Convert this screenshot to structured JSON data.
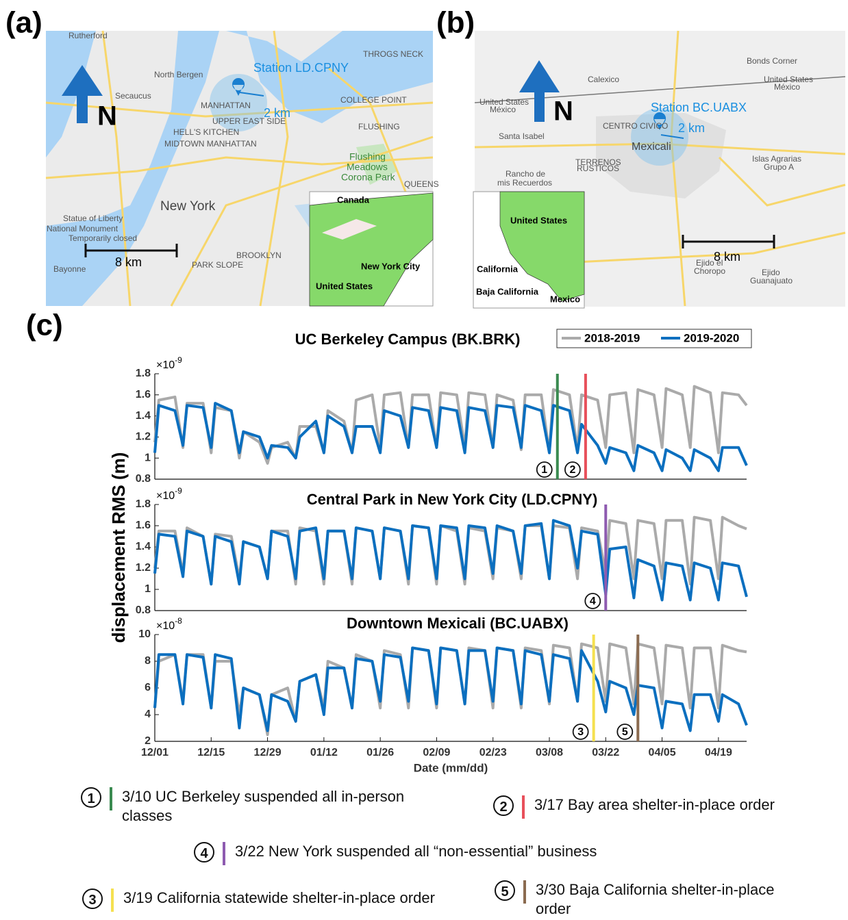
{
  "map_a": {
    "label": "(a)",
    "station": "Station LD.CPNY",
    "radius": "2 km",
    "north": "N",
    "scale": "8 km",
    "places": [
      "Rutherford",
      "North Bergen",
      "Secaucus",
      "MANHATTAN",
      "UPPER EAST SIDE",
      "HELL'S KITCHEN",
      "MIDTOWN MANHATTAN",
      "COLLEGE POINT",
      "FLUSHING",
      "Flushing",
      "Meadows",
      "Corona Park",
      "QUEENS",
      "New York",
      "Statue of Liberty",
      "National Monument",
      "Temporarily closed",
      "BROOKLYN",
      "PARK SLOPE",
      "Bayonne",
      "THROGS NECK"
    ],
    "inset": [
      "Canada",
      "New York City",
      "United States"
    ]
  },
  "map_b": {
    "label": "(b)",
    "station": "Station BC.UABX",
    "radius": "2 km",
    "north": "N",
    "scale": "8 km",
    "places": [
      "Calexico",
      "Bonds Corner",
      "United States",
      "México",
      "United States",
      "México",
      "Santa Isabel",
      "CENTRO CIVICO",
      "Mexicali",
      "Rancho de",
      "mis Recuerdos",
      "TERRENOS",
      "RUSTICOS",
      "Islas Agrarias",
      "Grupo A",
      "Ejido el",
      "Choropo",
      "Ejido",
      "Guanajuato"
    ],
    "inset": [
      "United States",
      "California",
      "Baja California",
      "Mexico"
    ]
  },
  "panel_c_label": "(c)",
  "chart_data": [
    {
      "type": "line",
      "title": "UC Berkeley Campus (BK.BRK)",
      "y_multiplier": "×10",
      "y_exponent": "-9",
      "xlim": [
        0,
        147
      ],
      "ylim": [
        0.8,
        1.8
      ],
      "yticks": [
        0.8,
        1,
        1.2,
        1.4,
        1.6,
        1.8
      ],
      "x": [
        0,
        1,
        5,
        7,
        8,
        12,
        14,
        15,
        19,
        21,
        22,
        26,
        28,
        29,
        33,
        35,
        36,
        40,
        42,
        43,
        47,
        49,
        50,
        54,
        56,
        57,
        61,
        63,
        64,
        68,
        70,
        71,
        75,
        77,
        78,
        82,
        84,
        85,
        89,
        91,
        92,
        96,
        98,
        99,
        103,
        105,
        106,
        110,
        112,
        113,
        117,
        119,
        120,
        124,
        126,
        127,
        131,
        133,
        134,
        138,
        140,
        141,
        145,
        147
      ],
      "series": [
        {
          "name": "2018-2019",
          "color": "#aaaaaa",
          "values": [
            1.15,
            1.55,
            1.58,
            1.1,
            1.52,
            1.52,
            1.05,
            1.48,
            1.45,
            1.0,
            1.25,
            1.15,
            0.95,
            1.1,
            1.15,
            1.0,
            1.3,
            1.3,
            1.05,
            1.45,
            1.35,
            1.05,
            1.55,
            1.6,
            1.1,
            1.6,
            1.62,
            1.1,
            1.6,
            1.6,
            1.1,
            1.62,
            1.6,
            1.1,
            1.62,
            1.6,
            1.1,
            1.6,
            1.55,
            1.08,
            1.6,
            1.6,
            1.05,
            1.65,
            1.6,
            1.08,
            1.6,
            1.55,
            1.1,
            1.6,
            1.62,
            1.05,
            1.65,
            1.6,
            1.1,
            1.66,
            1.6,
            1.1,
            1.68,
            1.62,
            1.05,
            1.62,
            1.6,
            1.5
          ]
        },
        {
          "name": "2019-2020",
          "color": "#0b6fbf",
          "values": [
            1.05,
            1.5,
            1.45,
            1.12,
            1.5,
            1.48,
            1.1,
            1.52,
            1.45,
            1.05,
            1.25,
            1.2,
            1.0,
            1.12,
            1.1,
            1.0,
            1.2,
            1.35,
            1.05,
            1.4,
            1.3,
            1.05,
            1.3,
            1.3,
            1.05,
            1.45,
            1.4,
            1.1,
            1.48,
            1.45,
            1.1,
            1.48,
            1.45,
            1.05,
            1.48,
            1.45,
            1.1,
            1.5,
            1.48,
            1.1,
            1.5,
            1.45,
            1.05,
            1.5,
            1.45,
            1.05,
            1.32,
            1.12,
            0.95,
            1.1,
            1.05,
            0.88,
            1.12,
            1.05,
            0.88,
            1.08,
            1.0,
            0.88,
            1.08,
            1.0,
            0.88,
            1.1,
            1.1,
            0.93
          ]
        }
      ],
      "events": [
        {
          "x": 100,
          "label": "1",
          "color": "#3a8a50"
        },
        {
          "x": 107,
          "label": "2",
          "color": "#e8505b"
        }
      ]
    },
    {
      "type": "line",
      "title": "Central Park in New York City (LD.CPNY)",
      "y_multiplier": "×10",
      "y_exponent": "-9",
      "ylabel": "displacement RMS (m)",
      "xlim": [
        0,
        147
      ],
      "ylim": [
        0.8,
        1.8
      ],
      "yticks": [
        0.8,
        1,
        1.2,
        1.4,
        1.6,
        1.8
      ],
      "x": [
        0,
        1,
        5,
        7,
        8,
        12,
        14,
        15,
        19,
        21,
        22,
        26,
        28,
        29,
        33,
        35,
        36,
        40,
        42,
        43,
        47,
        49,
        50,
        54,
        56,
        57,
        61,
        63,
        64,
        68,
        70,
        71,
        75,
        77,
        78,
        82,
        84,
        85,
        89,
        91,
        92,
        96,
        98,
        99,
        103,
        105,
        106,
        110,
        112,
        113,
        117,
        119,
        120,
        124,
        126,
        127,
        131,
        133,
        134,
        138,
        140,
        141,
        145,
        147
      ],
      "series": [
        {
          "color": "#aaaaaa",
          "values": [
            1.2,
            1.55,
            1.55,
            1.15,
            1.58,
            1.5,
            1.05,
            1.52,
            1.5,
            1.1,
            1.45,
            1.4,
            1.1,
            1.55,
            1.55,
            1.05,
            1.58,
            1.55,
            1.05,
            1.55,
            1.55,
            1.05,
            1.58,
            1.55,
            1.1,
            1.58,
            1.55,
            1.05,
            1.6,
            1.58,
            1.05,
            1.6,
            1.55,
            1.05,
            1.58,
            1.55,
            1.1,
            1.58,
            1.55,
            1.1,
            1.6,
            1.6,
            1.1,
            1.6,
            1.58,
            1.1,
            1.58,
            1.55,
            1.15,
            1.65,
            1.62,
            1.1,
            1.65,
            1.62,
            1.1,
            1.65,
            1.65,
            1.05,
            1.68,
            1.65,
            1.1,
            1.68,
            1.6,
            1.57
          ]
        },
        {
          "color": "#0b6fbf",
          "values": [
            1.15,
            1.52,
            1.5,
            1.12,
            1.55,
            1.5,
            1.05,
            1.5,
            1.45,
            1.05,
            1.45,
            1.4,
            1.1,
            1.55,
            1.5,
            1.1,
            1.55,
            1.58,
            1.1,
            1.55,
            1.55,
            1.1,
            1.58,
            1.55,
            1.1,
            1.58,
            1.55,
            1.1,
            1.6,
            1.58,
            1.1,
            1.6,
            1.58,
            1.1,
            1.6,
            1.58,
            1.15,
            1.6,
            1.55,
            1.15,
            1.6,
            1.62,
            1.1,
            1.65,
            1.6,
            1.2,
            1.55,
            1.52,
            0.95,
            1.38,
            1.4,
            0.92,
            1.28,
            1.22,
            0.9,
            1.25,
            1.22,
            0.9,
            1.25,
            1.2,
            0.9,
            1.25,
            1.22,
            0.93
          ]
        }
      ],
      "events": [
        {
          "x": 112,
          "label": "4",
          "color": "#8e5bb0"
        }
      ]
    },
    {
      "type": "line",
      "title": "Downtown Mexicali (BC.UABX)",
      "y_multiplier": "×10",
      "y_exponent": "-8",
      "xlabel": "Date (mm/dd)",
      "xlim": [
        0,
        147
      ],
      "ylim": [
        2,
        10
      ],
      "yticks": [
        2,
        4,
        6,
        8,
        10
      ],
      "xticks": [
        {
          "value": 0,
          "label": "12/01"
        },
        {
          "value": 14,
          "label": "12/15"
        },
        {
          "value": 28,
          "label": "12/29"
        },
        {
          "value": 42,
          "label": "01/12"
        },
        {
          "value": 56,
          "label": "01/26"
        },
        {
          "value": 70,
          "label": "02/09"
        },
        {
          "value": 84,
          "label": "02/23"
        },
        {
          "value": 98,
          "label": "03/08"
        },
        {
          "value": 112,
          "label": "03/22"
        },
        {
          "value": 126,
          "label": "04/05"
        },
        {
          "value": 140,
          "label": "04/19"
        }
      ],
      "x": [
        0,
        1,
        5,
        7,
        8,
        12,
        14,
        15,
        19,
        21,
        22,
        26,
        28,
        29,
        33,
        35,
        36,
        40,
        42,
        43,
        47,
        49,
        50,
        54,
        56,
        57,
        61,
        63,
        64,
        68,
        70,
        71,
        75,
        77,
        78,
        82,
        84,
        85,
        89,
        91,
        92,
        96,
        98,
        99,
        103,
        105,
        106,
        110,
        112,
        113,
        117,
        119,
        120,
        124,
        126,
        127,
        131,
        133,
        134,
        138,
        140,
        141,
        145,
        147
      ],
      "series": [
        {
          "color": "#aaaaaa",
          "values": [
            4.5,
            8.0,
            8.5,
            5.0,
            8.5,
            8.5,
            4.5,
            8.0,
            8.0,
            4.0,
            6.0,
            5.5,
            2.5,
            5.5,
            6.0,
            3.5,
            6.5,
            7.0,
            4.5,
            8.0,
            7.5,
            4.5,
            8.5,
            8.0,
            4.5,
            8.8,
            8.5,
            4.5,
            9.0,
            8.8,
            4.5,
            9.0,
            8.8,
            4.8,
            9.0,
            8.8,
            4.5,
            9.0,
            8.8,
            4.5,
            9.0,
            8.8,
            4.8,
            9.2,
            9.0,
            5.0,
            9.3,
            9.0,
            5.0,
            9.3,
            9.0,
            4.8,
            9.3,
            9.0,
            4.8,
            9.2,
            9.0,
            4.5,
            9.0,
            9.0,
            4.5,
            9.2,
            8.8,
            8.7
          ]
        },
        {
          "color": "#0b6fbf",
          "values": [
            4.5,
            8.5,
            8.5,
            4.8,
            8.5,
            8.3,
            4.5,
            8.5,
            8.2,
            3.0,
            6.0,
            5.5,
            2.8,
            5.5,
            5.0,
            3.5,
            6.5,
            7.0,
            4.0,
            7.5,
            7.5,
            4.5,
            8.2,
            8.0,
            5.0,
            8.5,
            8.3,
            5.0,
            9.0,
            8.8,
            4.8,
            9.0,
            8.8,
            4.8,
            8.8,
            8.8,
            5.0,
            9.0,
            8.8,
            4.8,
            8.8,
            8.5,
            5.0,
            8.5,
            8.2,
            5.0,
            8.8,
            6.5,
            4.2,
            6.5,
            6.0,
            4.0,
            6.2,
            6.0,
            3.0,
            5.0,
            4.8,
            2.8,
            5.5,
            5.5,
            3.5,
            5.5,
            4.8,
            3.2
          ]
        }
      ],
      "events": [
        {
          "x": 109,
          "label": "3",
          "color": "#f5e050"
        },
        {
          "x": 120,
          "label": "5",
          "color": "#8b6b50"
        }
      ]
    }
  ],
  "notes": [
    {
      "label": "1",
      "text": "3/10 UC Berkeley suspended all in-person classes",
      "color": "#3a8a50"
    },
    {
      "label": "2",
      "text": "3/17 Bay area shelter-in-place order",
      "color": "#e8505b"
    },
    {
      "label": "4",
      "text": "3/22 New York suspended all “non-essential” business",
      "color": "#8e5bb0"
    },
    {
      "label": "3",
      "text": "3/19 California statewide shelter-in-place order",
      "color": "#f5e050"
    },
    {
      "label": "5",
      "text": "3/30 Baja California shelter-in-place order",
      "color": "#8b6b50"
    }
  ]
}
